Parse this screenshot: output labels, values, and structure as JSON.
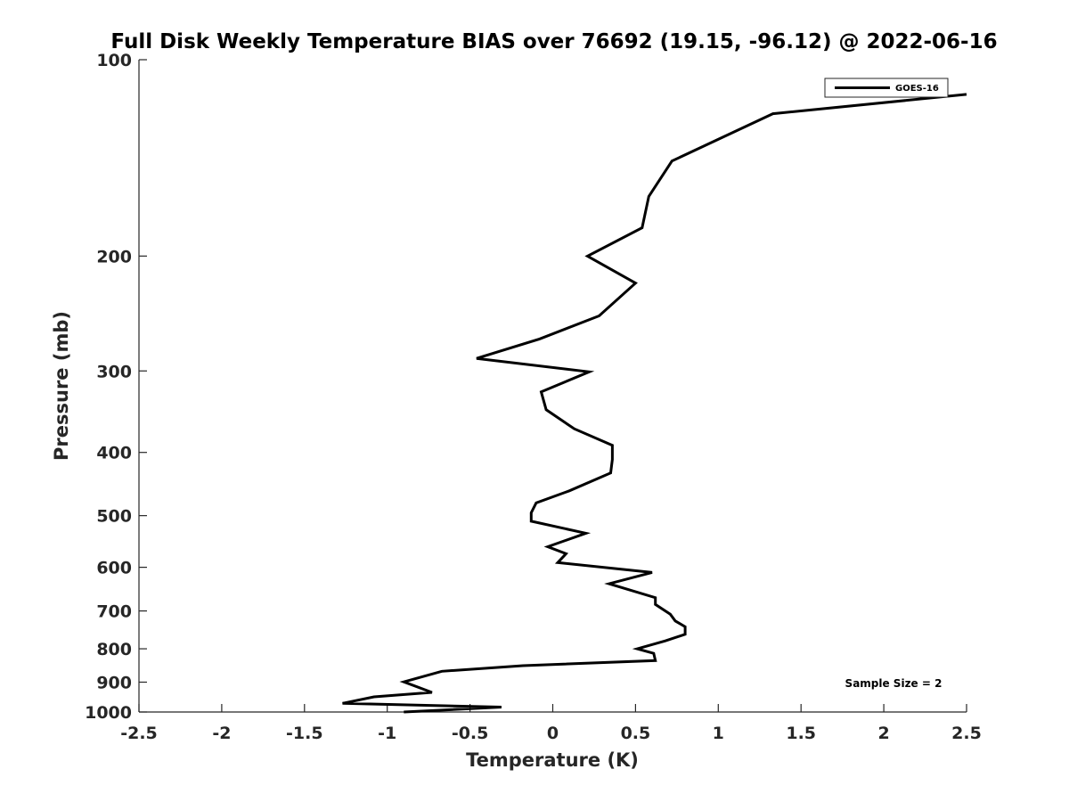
{
  "chart_data": {
    "type": "line",
    "title": "Full Disk Weekly Temperature BIAS over 76692 (19.15, -96.12) @ 2022-06-16",
    "xlabel": "Temperature (K)",
    "ylabel": "Pressure (mb)",
    "xlim": [
      -2.5,
      2.5
    ],
    "ylim": [
      1000,
      100
    ],
    "yscale": "log",
    "y_reversed": true,
    "grid": false,
    "x_ticks": [
      -2.5,
      -2,
      -1.5,
      -1,
      -0.5,
      0,
      0.5,
      1,
      1.5,
      2,
      2.5
    ],
    "x_tick_labels": [
      "-2.5",
      "-2",
      "-1.5",
      "-1",
      "-0.5",
      "0",
      "0.5",
      "1",
      "1.5",
      "2",
      "2.5"
    ],
    "y_ticks": [
      100,
      200,
      300,
      400,
      500,
      600,
      700,
      800,
      900,
      1000
    ],
    "y_tick_labels": [
      "100",
      "200",
      "300",
      "400",
      "500",
      "600",
      "700",
      "800",
      "900",
      "1000"
    ],
    "legend_position": "top-right",
    "annotation": "Sample Size = 2",
    "series": [
      {
        "name": "GOES-16",
        "color": "#000000",
        "points": [
          [
            2.5,
            113
          ],
          [
            1.33,
            121
          ],
          [
            0.72,
            143
          ],
          [
            0.58,
            162
          ],
          [
            0.54,
            181
          ],
          [
            0.21,
            200
          ],
          [
            0.5,
            220
          ],
          [
            0.28,
            247
          ],
          [
            -0.08,
            268
          ],
          [
            -0.46,
            287
          ],
          [
            0.22,
            301
          ],
          [
            -0.07,
            323
          ],
          [
            -0.04,
            344
          ],
          [
            0.13,
            368
          ],
          [
            0.36,
            390
          ],
          [
            0.36,
            410
          ],
          [
            0.35,
            430
          ],
          [
            0.1,
            458
          ],
          [
            -0.1,
            478
          ],
          [
            -0.13,
            495
          ],
          [
            -0.13,
            510
          ],
          [
            0.2,
            532
          ],
          [
            -0.03,
            558
          ],
          [
            0.08,
            572
          ],
          [
            0.03,
            590
          ],
          [
            0.6,
            611
          ],
          [
            0.34,
            636
          ],
          [
            0.62,
            668
          ],
          [
            0.62,
            684
          ],
          [
            0.71,
            708
          ],
          [
            0.74,
            725
          ],
          [
            0.8,
            740
          ],
          [
            0.8,
            760
          ],
          [
            0.68,
            778
          ],
          [
            0.51,
            800
          ],
          [
            0.61,
            813
          ],
          [
            0.62,
            834
          ],
          [
            -0.18,
            849
          ],
          [
            -0.67,
            866
          ],
          [
            -0.9,
            899
          ],
          [
            -0.73,
            933
          ],
          [
            -1.08,
            948
          ],
          [
            -1.27,
            970
          ],
          [
            -0.31,
            983
          ],
          [
            -0.9,
            1000
          ]
        ]
      }
    ]
  }
}
